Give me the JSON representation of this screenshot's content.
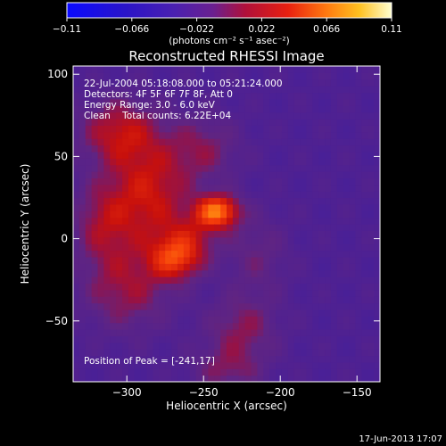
{
  "chart_data": {
    "type": "heatmap",
    "title": "Reconstructed RHESSI Image",
    "xlabel": "Heliocentric X (arcsec)",
    "ylabel": "Heliocentric Y (arcsec)",
    "xlim": [
      -335,
      -135
    ],
    "ylim": [
      -87,
      105
    ],
    "xticks": [
      -300,
      -250,
      -200,
      -150
    ],
    "yticks": [
      -50,
      0,
      50,
      100
    ],
    "xtick_labels": [
      "−300",
      "−250",
      "−200",
      "−150"
    ],
    "ytick_labels": [
      "−50",
      "0",
      "50",
      "100"
    ],
    "colorbar": {
      "range": [
        -0.11,
        0.11
      ],
      "tick_labels": [
        "−0.11",
        "−0.066",
        "−0.022",
        "0.022",
        "0.066",
        "0.11"
      ],
      "units_label": "(photons cm⁻² s⁻¹ asec⁻²)"
    },
    "colors": {
      "bg_negative": "#5a2aa0",
      "flux_low": "#c0100a",
      "flux_mid": "#ff6a10",
      "flux_peak": "#ffffa0"
    },
    "info_lines": [
      "22-Jul-2004 05:18:08.000 to 05:21:24.000",
      "Detectors: 4F 5F 6F 7F 8F, Att 0",
      "Energy Range: 3.0 - 6.0 keV",
      "Clean    Total counts: 6.22E+04"
    ],
    "peak_label": "Position of Peak = [-241,17]",
    "peak": {
      "x": -241,
      "y": 17,
      "value": 0.11
    },
    "sources": [
      {
        "x": -241,
        "y": 17,
        "sx": 10,
        "sy": 7,
        "amp": 0.085
      },
      {
        "x": -268,
        "y": -12,
        "sx": 12,
        "sy": 9,
        "amp": 0.06
      },
      {
        "x": -258,
        "y": 2,
        "sx": 14,
        "sy": 10,
        "amp": 0.03
      },
      {
        "x": -285,
        "y": 28,
        "sx": 18,
        "sy": 22,
        "amp": 0.05
      },
      {
        "x": -300,
        "y": -30,
        "sx": 20,
        "sy": 18,
        "amp": 0.035
      },
      {
        "x": -305,
        "y": 65,
        "sx": 18,
        "sy": 14,
        "amp": 0.045
      },
      {
        "x": -250,
        "y": 55,
        "sx": 16,
        "sy": 14,
        "amp": 0.028
      },
      {
        "x": -225,
        "y": -55,
        "sx": 16,
        "sy": 14,
        "amp": 0.03
      },
      {
        "x": -215,
        "y": -10,
        "sx": 14,
        "sy": 18,
        "amp": 0.02
      },
      {
        "x": -315,
        "y": 10,
        "sx": 14,
        "sy": 18,
        "amp": 0.035
      },
      {
        "x": -235,
        "y": -80,
        "sx": 16,
        "sy": 10,
        "amp": 0.025
      }
    ]
  },
  "footer": {
    "timestamp": "17-Jun-2013 17:07"
  }
}
